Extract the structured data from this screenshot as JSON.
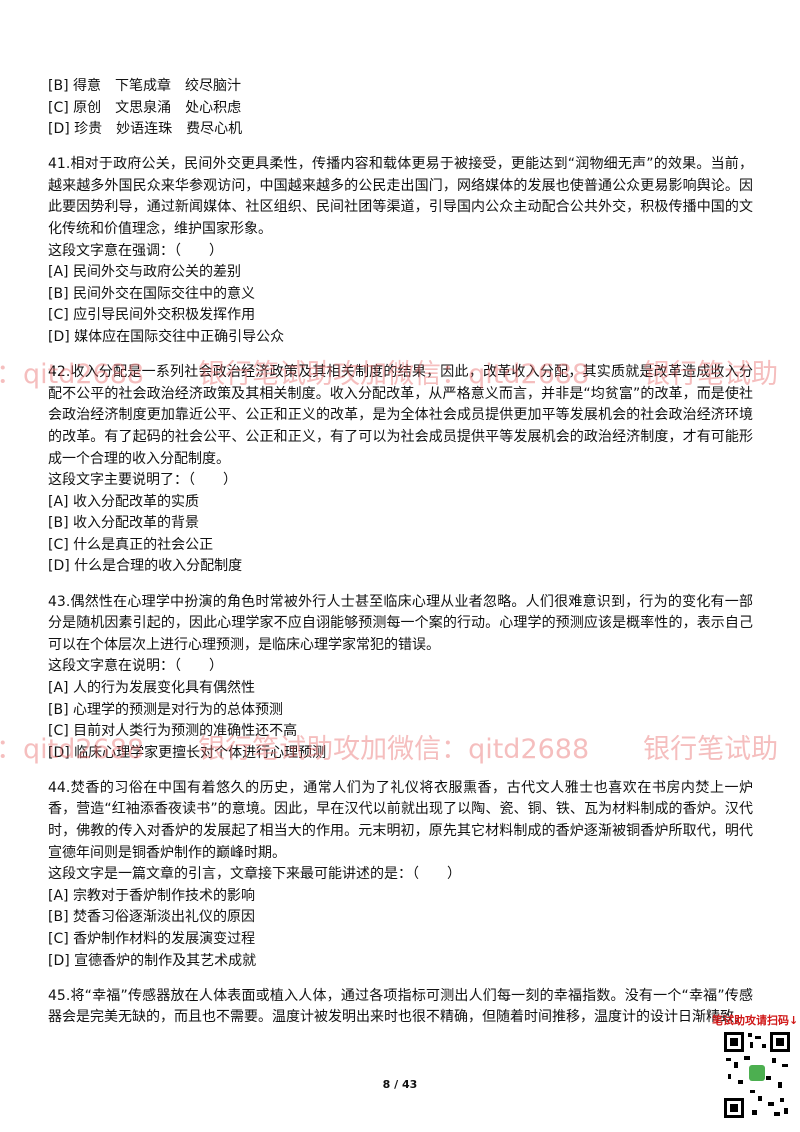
{
  "top_options": [
    "[B] 得意　下笔成章　绞尽脑汁",
    "[C] 原创　文思泉涌　处心积虑",
    "[D] 珍贵　妙语连珠　费尽心机"
  ],
  "questions": [
    {
      "number": "41.",
      "passage": "相对于政府公关，民间外交更具柔性，传播内容和载体更易于被接受，更能达到“润物细无声”的效果。当前，越来越多外国民众来华参观访问，中国越来越多的公民走出国门，网络媒体的发展也使普通公众更易影响舆论。因此要因势利导，通过新闻媒体、社区组织、民间社团等渠道，引导国内公众主动配合公共外交，积极传播中国的文化传统和价值理念，维护国家形象。",
      "prompt": "这段文字意在强调：（　　）",
      "options": [
        "[A] 民间外交与政府公关的差别",
        "[B] 民间外交在国际交往中的意义",
        "[C] 应引导民间外交积极发挥作用",
        "[D] 媒体应在国际交往中正确引导公众"
      ]
    },
    {
      "number": "42.",
      "passage": "收入分配是一系列社会政治经济政策及其相关制度的结果，因此，改革收入分配，其实质就是改革造成收入分配不公平的社会政治经济政策及其相关制度。收入分配改革，从严格意义而言，并非是“均贫富”的改革，而是使社会政治经济制度更加靠近公平、公正和正义的改革，是为全体社会成员提供更加平等发展机会的社会政治经济环境的改革。有了起码的社会公平、公正和正义，有了可以为社会成员提供平等发展机会的政治经济制度，才有可能形成一个合理的收入分配制度。",
      "prompt": "这段文字主要说明了：（　　）",
      "options": [
        "[A] 收入分配改革的实质",
        "[B] 收入分配改革的背景",
        "[C] 什么是真正的社会公正",
        "[D] 什么是合理的收入分配制度"
      ]
    },
    {
      "number": "43.",
      "passage": "偶然性在心理学中扮演的角色时常被外行人士甚至临床心理从业者忽略。人们很难意识到，行为的变化有一部分是随机因素引起的，因此心理学家不应自诩能够预测每一个案的行动。心理学的预测应该是概率性的，表示自己可以在个体层次上进行心理预测，是临床心理学家常犯的错误。",
      "prompt": "这段文字意在说明：（　　）",
      "options": [
        "[A] 人的行为发展变化具有偶然性",
        "[B] 心理学的预测是对行为的总体预测",
        "[C] 目前对人类行为预测的准确性还不高",
        "[D] 临床心理学家更擅长对个体进行心理预测"
      ]
    },
    {
      "number": "44.",
      "passage": "焚香的习俗在中国有着悠久的历史，通常人们为了礼仪将衣服熏香，古代文人雅士也喜欢在书房内焚上一炉香，营造“红袖添香夜读书”的意境。因此，早在汉代以前就出现了以陶、瓷、铜、铁、瓦为材料制成的香炉。汉代时，佛教的传入对香炉的发展起了相当大的作用。元末明初，原先其它材料制成的香炉逐渐被铜香炉所取代，明代宣德年间则是铜香炉制作的巅峰时期。",
      "prompt": "这段文字是一篇文章的引言，文章接下来最可能讲述的是：（　　）",
      "options": [
        "[A] 宗教对于香炉制作技术的影响",
        "[B] 焚香习俗逐渐淡出礼仪的原因",
        "[C] 香炉制作材料的发展演变过程",
        "[D] 宣德香炉的制作及其艺术成就"
      ]
    },
    {
      "number": "45.",
      "passage": "将“幸福”传感器放在人体表面或植入人体，通过各项指标可测出人们每一刻的幸福指数。没有一个“幸福”传感器会是完美无缺的，而且也不需要。温度计被发明出来时也很不精确，但随着时间推移，温度计的设计日渐精致，"
    }
  ],
  "watermarks": [
    "：qitd2688　　银行笔试助攻加微信：qitd2688　　银行笔试助",
    "：qitd2688　　银行笔试助攻加微信：qitd2688　　银行笔试助"
  ],
  "qr_caption": "笔试助攻请扫码↓",
  "page_number": "8 / 43"
}
